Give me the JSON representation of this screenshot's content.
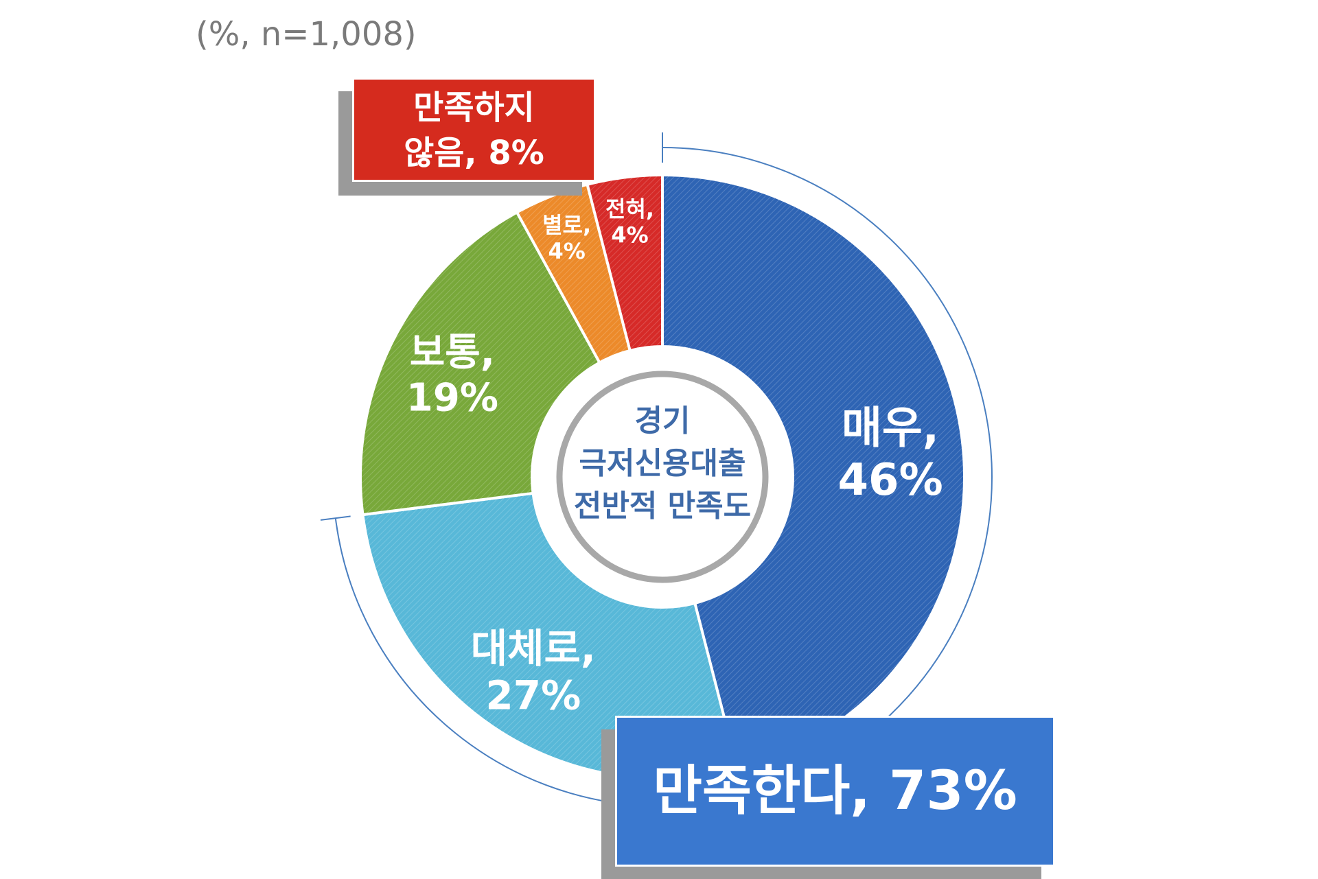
{
  "note": "(%, n=1,008)",
  "center_label": [
    "경기",
    "극저신용대출",
    "전반적 만족도"
  ],
  "summary": {
    "negative": {
      "line1": "만족하지",
      "line2": "않음, 8%",
      "value": 8,
      "color": "#d52b1e"
    },
    "positive": {
      "label": "만족한다, 73%",
      "value": 73,
      "color": "#3a78cf"
    }
  },
  "chart_data": {
    "type": "pie",
    "style": "donut",
    "title": "",
    "slices": [
      {
        "label": "매우,",
        "pct": "46%",
        "value": 46,
        "color": "#2e64b4"
      },
      {
        "label": "대체로,",
        "pct": "27%",
        "value": 27,
        "color": "#58b8d8"
      },
      {
        "label": "보통,",
        "pct": "19%",
        "value": 19,
        "color": "#78a83a"
      },
      {
        "label": "별로,",
        "pct": "4%",
        "value": 4,
        "color": "#ec8a2a"
      },
      {
        "label": "전혀,",
        "pct": "4%",
        "value": 4,
        "color": "#d62a28"
      }
    ]
  }
}
